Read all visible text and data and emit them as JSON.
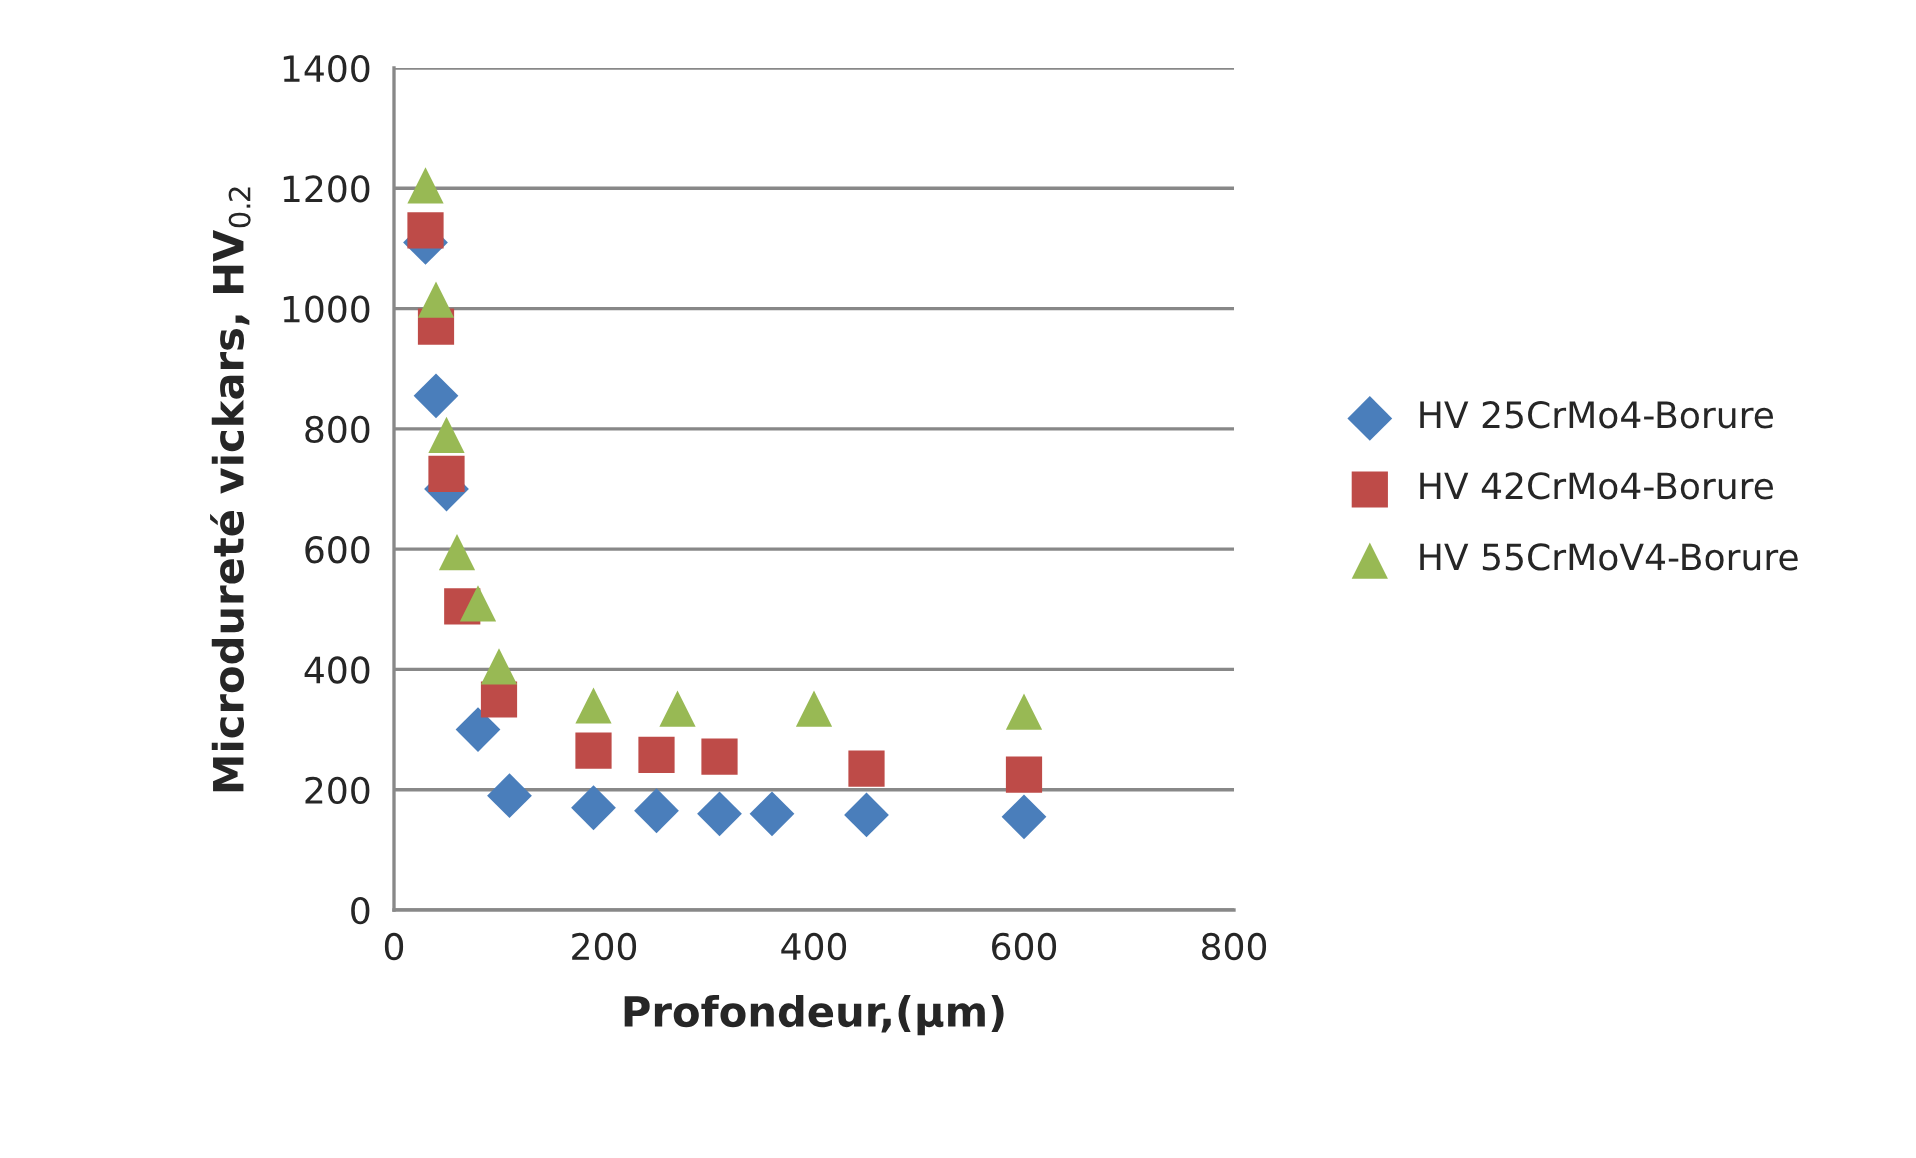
{
  "chart_data": {
    "type": "scatter",
    "xlabel": "Profondeur,(µm)",
    "ylabel": "Microdureté vickars, HV$_{0.2}$",
    "xlim": [
      0,
      800
    ],
    "xticks": [
      0,
      200,
      400,
      600,
      800
    ],
    "ylim": [
      0,
      1400
    ],
    "yticks": [
      0,
      200,
      400,
      600,
      800,
      1000,
      1200,
      1400
    ],
    "grid": "y",
    "legend": "right",
    "series": [
      {
        "name": "HV 25CrMo4-Borure",
        "color": "#4a7ebb",
        "marker": "diamond",
        "x": [
          30,
          40,
          50,
          80,
          110,
          190,
          250,
          310,
          360,
          450,
          600
        ],
        "values": [
          1110,
          855,
          700,
          300,
          190,
          170,
          165,
          160,
          160,
          158,
          155
        ]
      },
      {
        "name": "HV 42CrMo4-Borure",
        "color": "#be4b48",
        "marker": "square",
        "x": [
          30,
          40,
          50,
          65,
          100,
          190,
          250,
          310,
          450,
          600
        ],
        "values": [
          1130,
          970,
          725,
          505,
          350,
          265,
          258,
          255,
          235,
          225
        ]
      },
      {
        "name": "HV 55CrMoV4-Borure",
        "color": "#98b954",
        "marker": "triangle",
        "x": [
          30,
          40,
          50,
          60,
          80,
          100,
          190,
          270,
          400,
          600
        ],
        "values": [
          1205,
          1015,
          790,
          595,
          510,
          405,
          340,
          335,
          335,
          330
        ]
      }
    ]
  }
}
